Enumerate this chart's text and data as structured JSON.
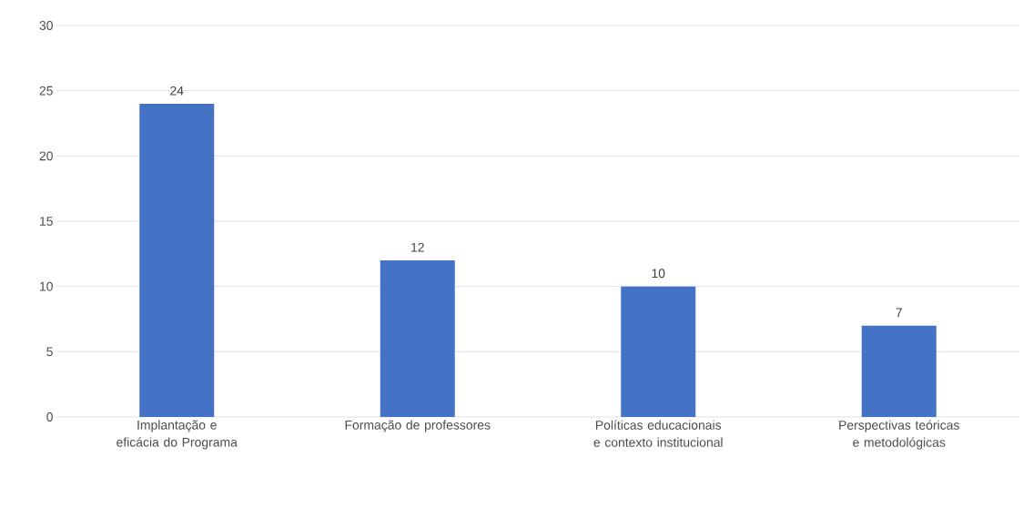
{
  "chart_data": {
    "type": "bar",
    "categories": [
      "Implantação e eficácia do Programa",
      "Formação de professores",
      "Políticas educacionais e contexto institucional",
      "Perspectivas teóricas e metodológicas"
    ],
    "values": [
      24,
      12,
      10,
      7
    ],
    "color": "#4472c4",
    "ylim": [
      0,
      30
    ],
    "yticks": [
      0,
      5,
      10,
      15,
      20,
      25,
      30
    ],
    "grid": "y",
    "data_labels": true
  }
}
